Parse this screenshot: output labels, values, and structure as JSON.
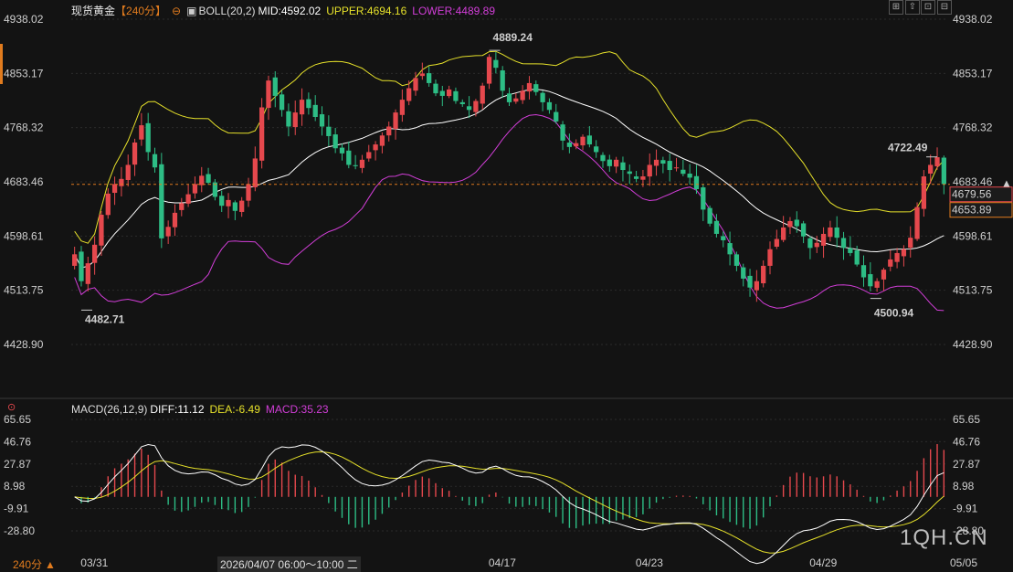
{
  "header": {
    "instrument": "现货黄金",
    "period": "【240分】",
    "boll": "BOLL(20,2)",
    "mid": "MID:4592.02",
    "upper": "UPPER:4694.16",
    "lower": "LOWER:4489.89"
  },
  "macd_header": {
    "name": "MACD(26,12,9)",
    "diff": "DIFF:11.12",
    "dea": "DEA:-6.49",
    "macd": "MACD:35.23"
  },
  "colors": {
    "up": "#e5484d",
    "down": "#2dbd85",
    "upper": "#e6e12a",
    "mid": "#ffffff",
    "lower": "#d23ed8",
    "dea": "#e6e12a",
    "price_line": "#e07b1e"
  },
  "footer": {
    "period": "240分",
    "hover_time": "2026/04/07 06:00～10:00 二",
    "watermark": "1QH.CN"
  },
  "chart_data": [
    {
      "type": "candlestick",
      "title": "现货黄金",
      "y_ticks": [
        "4938.02",
        "4853.17",
        "4768.32",
        "4683.46",
        "4598.61",
        "4513.75",
        "4428.90"
      ],
      "ylim": [
        4380,
        4960
      ],
      "x_labels": [
        "03/31",
        "04/17",
        "04/23",
        "04/29",
        "05/05"
      ],
      "current_price": 4679.56,
      "current_price_label": "4679.56",
      "second_price_label": "4653.89",
      "annotations": [
        {
          "label": "4889.24",
          "value": 4889.24
        },
        {
          "label": "4482.71",
          "value": 4482.71
        },
        {
          "label": "4722.49",
          "value": 4722.49
        },
        {
          "label": "4500.94",
          "value": 4500.94
        }
      ],
      "close": [
        4570,
        4528,
        4556,
        4585,
        4632,
        4665,
        4680,
        4688,
        4710,
        4745,
        4772,
        4730,
        4706,
        4595,
        4613,
        4635,
        4650,
        4664,
        4680,
        4693,
        4682,
        4660,
        4646,
        4655,
        4638,
        4654,
        4680,
        4720,
        4800,
        4842,
        4818,
        4796,
        4770,
        4792,
        4812,
        4799,
        4785,
        4770,
        4755,
        4736,
        4728,
        4710,
        4708,
        4718,
        4730,
        4742,
        4756,
        4770,
        4792,
        4812,
        4830,
        4846,
        4853,
        4838,
        4822,
        4818,
        4828,
        4810,
        4805,
        4796,
        4810,
        4834,
        4879,
        4862,
        4826,
        4808,
        4814,
        4826,
        4838,
        4824,
        4808,
        4796,
        4778,
        4748,
        4738,
        4744,
        4754,
        4742,
        4730,
        4716,
        4708,
        4718,
        4702,
        4696,
        4688,
        4692,
        4710,
        4718,
        4712,
        4702,
        4706,
        4696,
        4690,
        4672,
        4640,
        4618,
        4602,
        4592,
        4570,
        4552,
        4532,
        4518,
        4528,
        4552,
        4578,
        4594,
        4612,
        4622,
        4614,
        4598,
        4580,
        4588,
        4602,
        4612,
        4596,
        4580,
        4572,
        4554,
        4534,
        4520,
        4528,
        4546,
        4562,
        4572,
        4578,
        4596,
        4644,
        4692,
        4710,
        4722,
        4680
      ]
    },
    {
      "type": "macd",
      "title": "MACD(26,12,9)",
      "y_ticks": [
        "65.65",
        "46.76",
        "27.87",
        "8.98",
        "-9.91",
        "-28.80"
      ],
      "ylim": [
        -44,
        72
      ],
      "diff_last": 11.12,
      "dea_last": -6.49,
      "macd_last": 35.23
    }
  ]
}
